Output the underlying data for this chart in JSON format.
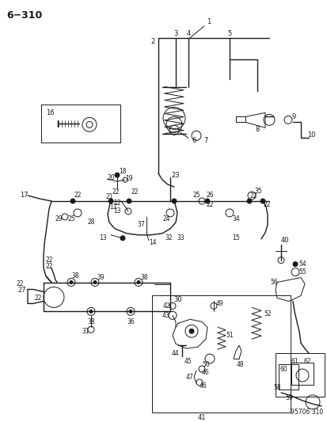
{
  "title": "6−310",
  "watermark": "95706 310",
  "bg_color": "#ffffff",
  "line_color": "#1a1a1a",
  "fig_width": 4.14,
  "fig_height": 5.33,
  "dpi": 100
}
